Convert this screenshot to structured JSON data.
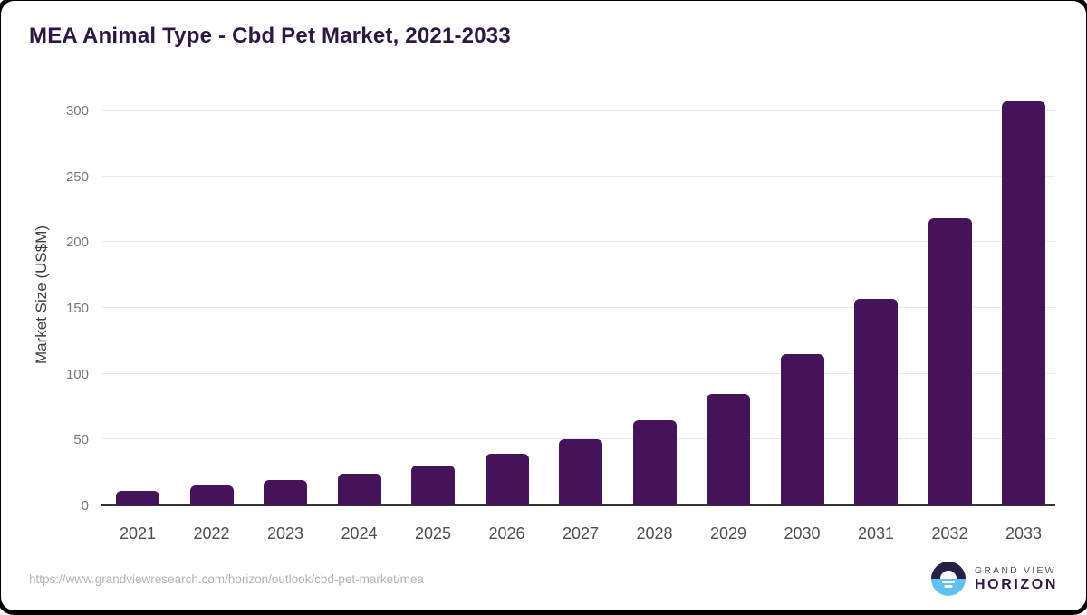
{
  "header": {
    "title": "MEA Animal Type - Cbd Pet Market, 2021-2033"
  },
  "chart_data": {
    "type": "bar",
    "title": "MEA Animal Type - Cbd Pet Market, 2021-2033",
    "categories": [
      "2021",
      "2022",
      "2023",
      "2024",
      "2025",
      "2026",
      "2027",
      "2028",
      "2029",
      "2030",
      "2031",
      "2032",
      "2033"
    ],
    "values": [
      11,
      15,
      19,
      24,
      30,
      39,
      50,
      65,
      85,
      115,
      157,
      218,
      307
    ],
    "xlabel": "",
    "ylabel": "Market Size (US$M)",
    "ylim": [
      0,
      300
    ],
    "yticks": [
      0,
      50,
      100,
      150,
      200,
      250,
      300
    ],
    "grid": "horizontal",
    "legend": "none",
    "bar_color": "#45135a"
  },
  "colors": {
    "title": "#2e1745",
    "bar": "#45135a",
    "gridline": "#e8e8e8",
    "axis_line": "#333333",
    "ytick_text": "#777777",
    "xtick_text": "#4d4d4d",
    "source_text": "#b3b3b3",
    "logo_dark": "#262045",
    "logo_blue": "#5ec1f0"
  },
  "footer": {
    "source_url": "https://www.grandviewresearch.com/horizon/outlook/cbd-pet-market/mea",
    "logo": {
      "top": "GRAND VIEW",
      "bottom": "HORIZON"
    }
  }
}
